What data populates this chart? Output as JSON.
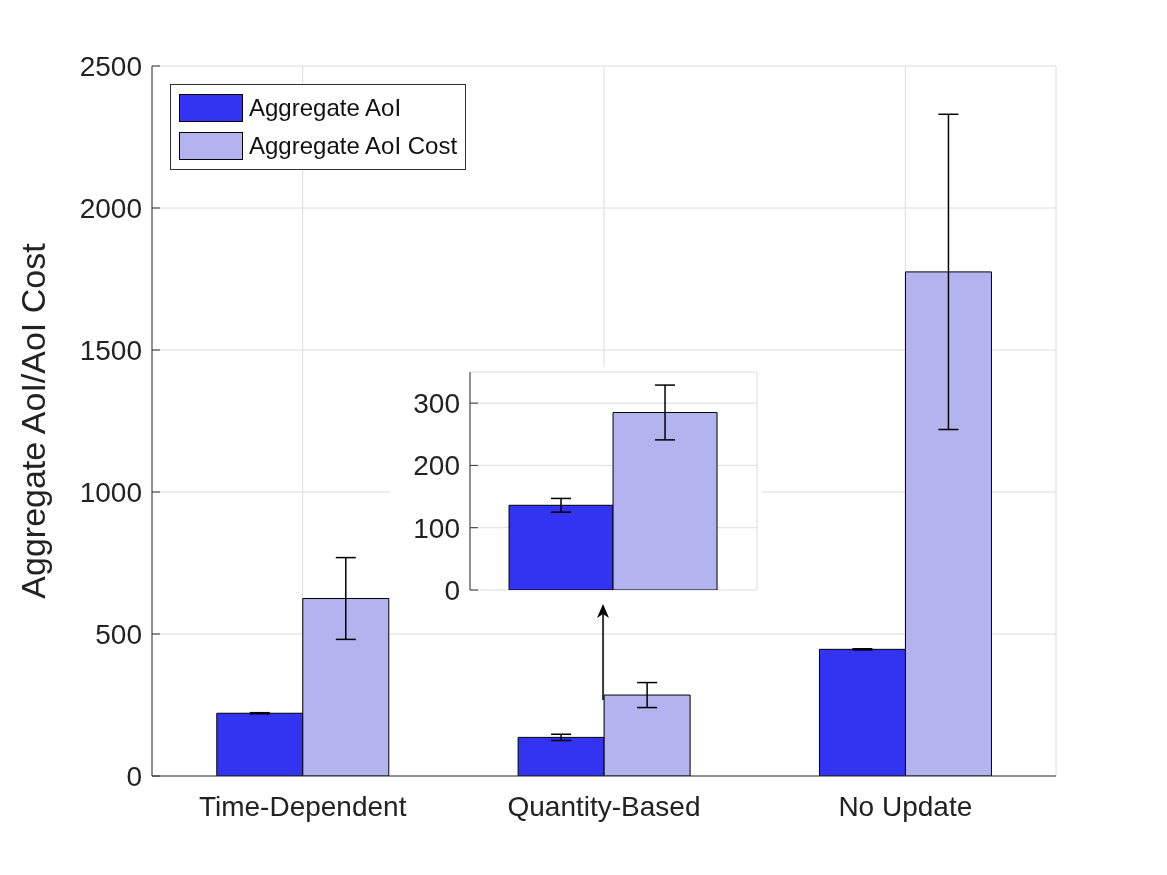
{
  "chart_data": [
    {
      "type": "bar",
      "ylabel": "Aggregate AoI/AoI Cost",
      "categories": [
        "Time-Dependent",
        "Quantity-Based",
        "No Update"
      ],
      "series": [
        {
          "name": "Aggregate AoI",
          "color": "#3333f2",
          "values": [
            221,
            136,
            446
          ],
          "errors": [
            2,
            11,
            2
          ]
        },
        {
          "name": "Aggregate AoI Cost",
          "color": "#b3b3f0",
          "values": [
            625,
            285,
            1775
          ],
          "errors": [
            144,
            44,
            555
          ]
        }
      ],
      "ylim": [
        0,
        2500
      ],
      "yticks": [
        0,
        500,
        1000,
        1500,
        2000,
        2500
      ],
      "grid": true,
      "legend": "top left"
    },
    {
      "type": "bar",
      "categories": [
        null
      ],
      "series": [
        {
          "color": "#3333f2",
          "values": [
            136
          ],
          "errors": [
            11
          ]
        },
        {
          "color": "#b3b3f0",
          "values": [
            285
          ],
          "errors": [
            44
          ]
        }
      ],
      "ylim": [
        0,
        350
      ],
      "yticks": [
        0,
        100,
        200,
        300
      ],
      "grid": true,
      "tick_labels": "y"
    }
  ]
}
